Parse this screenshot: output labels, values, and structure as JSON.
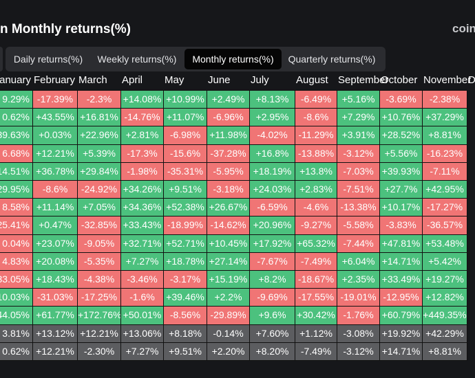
{
  "header": {
    "title": "n Monthly returns(%)",
    "brand": "coin"
  },
  "tabs": {
    "items": [
      "Daily returns(%)",
      "Weekly returns(%)",
      "Monthly returns(%)",
      "Quarterly returns(%)"
    ],
    "active": 2
  },
  "table": {
    "columns": [
      "anuary",
      "February",
      "March",
      "April",
      "May",
      "June",
      "July",
      "August",
      "September",
      "October",
      "November",
      "De"
    ],
    "colors": {
      "positive": "#4cc17e",
      "negative": "#f07575",
      "summary": "#5c5d60"
    },
    "first_column_colors": [
      "#4cc17e",
      "#4cc17e",
      "#4cc17e",
      "#f07575",
      "#4cc17e",
      "#4cc17e",
      "#f07575",
      "#f07575",
      "#f07575",
      "#f07575",
      "#f07575",
      "#4cc17e",
      "#4cc17e"
    ],
    "rows": [
      [
        "9.29%",
        "-17.39%",
        "-2.3%",
        "+14.08%",
        "+10.99%",
        "+2.49%",
        "+8.13%",
        "-6.49%",
        "+5.16%",
        "-3.69%",
        "-2.38%"
      ],
      [
        "0.62%",
        "+43.55%",
        "+16.81%",
        "-14.76%",
        "+11.07%",
        "-6.96%",
        "+2.95%",
        "-8.6%",
        "+7.29%",
        "+10.76%",
        "+37.29%"
      ],
      [
        "39.63%",
        "+0.03%",
        "+22.96%",
        "+2.81%",
        "-6.98%",
        "+11.98%",
        "-4.02%",
        "-11.29%",
        "+3.91%",
        "+28.52%",
        "+8.81%"
      ],
      [
        "6.68%",
        "+12.21%",
        "+5.39%",
        "-17.3%",
        "-15.6%",
        "-37.28%",
        "+16.8%",
        "-13.88%",
        "-3.12%",
        "+5.56%",
        "-16.23%"
      ],
      [
        "14.51%",
        "+36.78%",
        "+29.84%",
        "-1.98%",
        "-35.31%",
        "-5.95%",
        "+18.19%",
        "+13.8%",
        "-7.03%",
        "+39.93%",
        "-7.11%"
      ],
      [
        "29.95%",
        "-8.6%",
        "-24.92%",
        "+34.26%",
        "+9.51%",
        "-3.18%",
        "+24.03%",
        "+2.83%",
        "-7.51%",
        "+27.7%",
        "+42.95%"
      ],
      [
        "8.58%",
        "+11.14%",
        "+7.05%",
        "+34.36%",
        "+52.38%",
        "+26.67%",
        "-6.59%",
        "-4.6%",
        "-13.38%",
        "+10.17%",
        "-17.27%"
      ],
      [
        "25.41%",
        "+0.47%",
        "-32.85%",
        "+33.43%",
        "-18.99%",
        "-14.62%",
        "+20.96%",
        "-9.27%",
        "-5.58%",
        "-3.83%",
        "-36.57%"
      ],
      [
        "0.04%",
        "+23.07%",
        "-9.05%",
        "+32.71%",
        "+52.71%",
        "+10.45%",
        "+17.92%",
        "+65.32%",
        "-7.44%",
        "+47.81%",
        "+53.48%"
      ],
      [
        "4.83%",
        "+20.08%",
        "-5.35%",
        "+7.27%",
        "+18.78%",
        "+27.14%",
        "-7.67%",
        "-7.49%",
        "+6.04%",
        "+14.71%",
        "+5.42%"
      ],
      [
        "33.05%",
        "+18.43%",
        "-4.38%",
        "-3.46%",
        "-3.17%",
        "+15.19%",
        "+8.2%",
        "-18.67%",
        "+2.35%",
        "+33.49%",
        "+19.27%"
      ],
      [
        "10.03%",
        "-31.03%",
        "-17.25%",
        "-1.6%",
        "+39.46%",
        "+2.2%",
        "-9.69%",
        "-17.55%",
        "-19.01%",
        "-12.95%",
        "+12.82%"
      ],
      [
        "44.05%",
        "+61.77%",
        "+172.76%",
        "+50.01%",
        "-8.56%",
        "-29.89%",
        "+9.6%",
        "+30.42%",
        "-1.76%",
        "+60.79%",
        "+449.35%"
      ]
    ],
    "summary_rows": [
      [
        "3.81%",
        "+13.12%",
        "+12.21%",
        "+13.06%",
        "+8.18%",
        "-0.14%",
        "+7.60%",
        "+1.12%",
        "-3.08%",
        "+19.92%",
        "+42.29%"
      ],
      [
        "0.62%",
        "+12.21%",
        "-2.30%",
        "+7.27%",
        "+9.51%",
        "+2.20%",
        "+8.20%",
        "-7.49%",
        "-3.12%",
        "+14.71%",
        "+8.81%"
      ]
    ]
  }
}
